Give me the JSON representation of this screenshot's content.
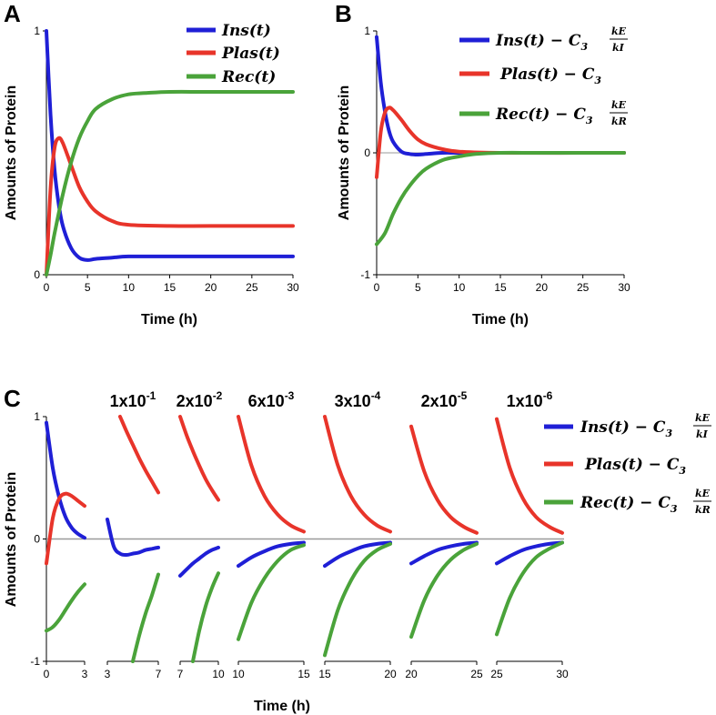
{
  "colors": {
    "ins": "#1f1fd6",
    "plas": "#e8342a",
    "rec": "#4aa33a",
    "zero": "#999999"
  },
  "chart_data": [
    {
      "panel": "A",
      "type": "line",
      "xlabel": "Time (h)",
      "ylabel": "Amounts of Protein",
      "xlim": [
        0,
        30
      ],
      "ylim": [
        0,
        1
      ],
      "xticks": [
        "0",
        "5",
        "10",
        "15",
        "20",
        "25",
        "30"
      ],
      "yticks": [
        "0",
        "1"
      ],
      "legend": [
        "Ins(t)",
        "Plas(t)",
        "Rec(t)"
      ],
      "series": [
        {
          "name": "Ins(t)",
          "x": [
            0,
            0.5,
            1,
            1.5,
            2,
            3,
            4,
            5,
            6,
            8,
            10,
            15,
            20,
            30
          ],
          "values": [
            1.0,
            0.66,
            0.43,
            0.29,
            0.2,
            0.11,
            0.07,
            0.06,
            0.065,
            0.07,
            0.075,
            0.075,
            0.075,
            0.075
          ]
        },
        {
          "name": "Plas(t)",
          "x": [
            0,
            0.5,
            1,
            1.5,
            2,
            3,
            4,
            5,
            6,
            8,
            10,
            15,
            20,
            30
          ],
          "values": [
            0.0,
            0.35,
            0.52,
            0.56,
            0.54,
            0.45,
            0.36,
            0.3,
            0.26,
            0.22,
            0.205,
            0.2,
            0.2,
            0.2
          ]
        },
        {
          "name": "Rec(t)",
          "x": [
            0,
            0.5,
            1,
            2,
            3,
            4,
            5,
            6,
            8,
            10,
            12,
            15,
            20,
            30
          ],
          "values": [
            0.0,
            0.08,
            0.17,
            0.33,
            0.46,
            0.56,
            0.63,
            0.68,
            0.72,
            0.74,
            0.745,
            0.75,
            0.75,
            0.75
          ]
        }
      ]
    },
    {
      "panel": "B",
      "type": "line",
      "xlabel": "Time (h)",
      "ylabel": "Amounts of Protein",
      "xlim": [
        0,
        30
      ],
      "ylim": [
        -1,
        1
      ],
      "xticks": [
        "0",
        "5",
        "10",
        "15",
        "20",
        "25",
        "30"
      ],
      "yticks": [
        "-1",
        "0",
        "1"
      ],
      "legend": [
        "Ins(t) − C3 kE/kI",
        "Plas(t) − C3",
        "Rec(t) − C3 kE/kR"
      ],
      "series": [
        {
          "name": "Ins(t) − C3 kE/kI",
          "x": [
            0,
            0.5,
            1,
            1.5,
            2,
            3,
            4,
            5,
            6,
            8,
            10,
            15,
            30
          ],
          "values": [
            0.95,
            0.58,
            0.34,
            0.18,
            0.09,
            0.01,
            -0.01,
            -0.015,
            -0.01,
            0,
            0,
            0,
            0
          ]
        },
        {
          "name": "Plas(t) − C3",
          "x": [
            0,
            0.5,
            1,
            1.5,
            2,
            3,
            4,
            5,
            6,
            8,
            10,
            15,
            30
          ],
          "values": [
            -0.2,
            0.17,
            0.33,
            0.37,
            0.35,
            0.27,
            0.18,
            0.11,
            0.07,
            0.03,
            0.01,
            0,
            0
          ]
        },
        {
          "name": "Rec(t) − C3 kE/kR",
          "x": [
            0,
            1,
            2,
            3,
            4,
            5,
            6,
            8,
            10,
            12,
            15,
            20,
            30
          ],
          "values": [
            -0.75,
            -0.66,
            -0.5,
            -0.37,
            -0.27,
            -0.19,
            -0.13,
            -0.06,
            -0.03,
            -0.01,
            0,
            0,
            0
          ]
        }
      ]
    },
    {
      "panel": "C",
      "type": "line",
      "xlabel": "Time (h)",
      "ylabel": "Amounts of Protein",
      "ylim": [
        -1,
        1
      ],
      "yticks": [
        "-1",
        "0",
        "1"
      ],
      "legend": [
        "Ins(t) − C3 kE/kI",
        "Plas(t) − C3",
        "Rec(t) − C3 kE/kR"
      ],
      "segments": [
        {
          "label": "",
          "xlim": [
            0,
            3
          ],
          "xticks": [
            "0",
            "3"
          ],
          "ins": {
            "x": [
              0,
              0.5,
              1,
              1.5,
              2,
              2.5,
              3
            ],
            "values": [
              0.95,
              0.58,
              0.34,
              0.18,
              0.09,
              0.04,
              0.01
            ]
          },
          "plas": {
            "x": [
              0,
              0.5,
              1,
              1.5,
              2,
              2.5,
              3
            ],
            "values": [
              -0.2,
              0.17,
              0.33,
              0.37,
              0.35,
              0.31,
              0.27
            ]
          },
          "rec": {
            "x": [
              0,
              0.5,
              1,
              1.5,
              2,
              2.5,
              3
            ],
            "values": [
              -0.75,
              -0.72,
              -0.66,
              -0.58,
              -0.5,
              -0.43,
              -0.37
            ]
          }
        },
        {
          "label": "1x10",
          "exp": "-1",
          "xlim": [
            3,
            7
          ],
          "xticks": [
            "3",
            "7"
          ],
          "ins": {
            "x": [
              3,
              3.5,
              4,
              4.5,
              5,
              5.5,
              6,
              6.5,
              7
            ],
            "values": [
              0.16,
              -0.06,
              -0.12,
              -0.13,
              -0.12,
              -0.11,
              -0.09,
              -0.08,
              -0.07
            ]
          },
          "plas": {
            "x": [
              4,
              4.5,
              5,
              5.5,
              6,
              6.5,
              7
            ],
            "values": [
              1.0,
              0.88,
              0.77,
              0.66,
              0.56,
              0.47,
              0.38
            ]
          },
          "rec": {
            "x": [
              5,
              5.5,
              6,
              6.5,
              7
            ],
            "values": [
              -1.0,
              -0.79,
              -0.61,
              -0.46,
              -0.29
            ]
          }
        },
        {
          "label": "2x10",
          "exp": "-2",
          "xlim": [
            7,
            10
          ],
          "xticks": [
            "7",
            "10"
          ],
          "ins": {
            "x": [
              7,
              7.5,
              8,
              8.5,
              9,
              9.5,
              10
            ],
            "values": [
              -0.3,
              -0.25,
              -0.2,
              -0.16,
              -0.12,
              -0.09,
              -0.07
            ]
          },
          "plas": {
            "x": [
              7,
              7.5,
              8,
              8.5,
              9,
              9.5,
              10
            ],
            "values": [
              1.0,
              0.85,
              0.72,
              0.6,
              0.49,
              0.4,
              0.32
            ]
          },
          "rec": {
            "x": [
              8,
              8.5,
              9,
              9.5,
              10
            ],
            "values": [
              -1.0,
              -0.75,
              -0.55,
              -0.4,
              -0.28
            ]
          }
        },
        {
          "label": "6x10",
          "exp": "-3",
          "xlim": [
            10,
            15
          ],
          "xticks": [
            "10",
            "15"
          ],
          "ins": {
            "x": [
              10,
              11,
              12,
              13,
              14,
              15
            ],
            "values": [
              -0.22,
              -0.15,
              -0.1,
              -0.06,
              -0.04,
              -0.03
            ]
          },
          "plas": {
            "x": [
              10,
              11,
              12,
              13,
              14,
              15
            ],
            "values": [
              1.0,
              0.6,
              0.35,
              0.2,
              0.11,
              0.06
            ]
          },
          "rec": {
            "x": [
              10,
              11,
              12,
              13,
              14,
              15
            ],
            "values": [
              -0.82,
              -0.52,
              -0.32,
              -0.18,
              -0.09,
              -0.05
            ]
          }
        },
        {
          "label": "3x10",
          "exp": "-4",
          "xlim": [
            15,
            20
          ],
          "xticks": [
            "15",
            "20"
          ],
          "ins": {
            "x": [
              15,
              16,
              17,
              18,
              19,
              20
            ],
            "values": [
              -0.22,
              -0.15,
              -0.1,
              -0.06,
              -0.04,
              -0.03
            ]
          },
          "plas": {
            "x": [
              15,
              16,
              17,
              18,
              19,
              20
            ],
            "values": [
              1.0,
              0.6,
              0.35,
              0.2,
              0.11,
              0.06
            ]
          },
          "rec": {
            "x": [
              15,
              16,
              17,
              18,
              19,
              20
            ],
            "values": [
              -0.95,
              -0.58,
              -0.34,
              -0.18,
              -0.09,
              -0.04
            ]
          }
        },
        {
          "label": "2x10",
          "exp": "-5",
          "xlim": [
            20,
            25
          ],
          "xticks": [
            "20",
            "25"
          ],
          "ins": {
            "x": [
              20,
              21,
              22,
              23,
              24,
              25
            ],
            "values": [
              -0.2,
              -0.14,
              -0.09,
              -0.06,
              -0.04,
              -0.03
            ]
          },
          "plas": {
            "x": [
              20,
              21,
              22,
              23,
              24,
              25
            ],
            "values": [
              0.92,
              0.55,
              0.32,
              0.18,
              0.1,
              0.05
            ]
          },
          "rec": {
            "x": [
              20,
              21,
              22,
              23,
              24,
              25
            ],
            "values": [
              -0.8,
              -0.5,
              -0.3,
              -0.17,
              -0.09,
              -0.04
            ]
          }
        },
        {
          "label": "1x10",
          "exp": "-6",
          "xlim": [
            25,
            30
          ],
          "xticks": [
            "25",
            "30"
          ],
          "ins": {
            "x": [
              25,
              26,
              27,
              28,
              29,
              30
            ],
            "values": [
              -0.2,
              -0.14,
              -0.09,
              -0.06,
              -0.04,
              -0.03
            ]
          },
          "plas": {
            "x": [
              25,
              26,
              27,
              28,
              29,
              30
            ],
            "values": [
              0.98,
              0.58,
              0.33,
              0.18,
              0.1,
              0.05
            ]
          },
          "rec": {
            "x": [
              25,
              26,
              27,
              28,
              29,
              30
            ],
            "values": [
              -0.78,
              -0.48,
              -0.28,
              -0.15,
              -0.08,
              -0.03
            ]
          }
        }
      ]
    }
  ],
  "legend_text": {
    "ins_a": "Ins(t)",
    "plas_a": "Plas(t)",
    "rec_a": "Rec(t)",
    "ins_b_main": "Ins(t) − C",
    "plas_b_main": "Plas(t) − C",
    "rec_b_main": "Rec(t) − C",
    "three": "3",
    "ke": "kE",
    "ki": "kI",
    "kr": "kR"
  }
}
